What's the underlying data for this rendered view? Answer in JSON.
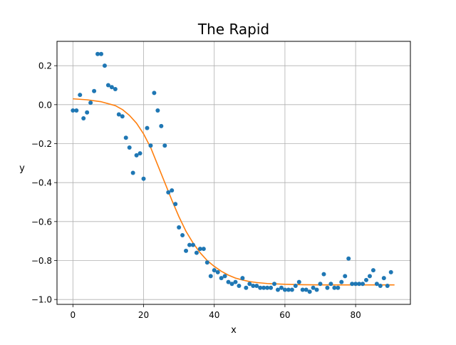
{
  "chart_data": {
    "type": "scatter",
    "title": "The Rapid",
    "xlabel": "x",
    "ylabel": "y",
    "xlim": [
      -4.5,
      95.5
    ],
    "ylim": [
      -1.025,
      0.325
    ],
    "xticks": [
      0,
      20,
      40,
      60,
      80
    ],
    "yticks": [
      0.2,
      0.0,
      -0.2,
      -0.4,
      -0.6,
      -0.8,
      -1.0
    ],
    "xtick_labels": [
      "0",
      "20",
      "40",
      "60",
      "80"
    ],
    "ytick_labels": [
      "0.2",
      "0.0",
      "−0.2",
      "−0.4",
      "−0.6",
      "−0.8",
      "−1.0"
    ],
    "grid": true,
    "series": [
      {
        "kind": "scatter",
        "color": "#1f77b4",
        "x": [
          0,
          1,
          2,
          3,
          4,
          5,
          6,
          7,
          8,
          9,
          10,
          11,
          12,
          13,
          14,
          15,
          16,
          17,
          18,
          19,
          20,
          21,
          22,
          23,
          24,
          25,
          26,
          27,
          28,
          29,
          30,
          31,
          32,
          33,
          34,
          35,
          36,
          37,
          38,
          39,
          40,
          41,
          42,
          43,
          44,
          45,
          46,
          47,
          48,
          49,
          50,
          51,
          52,
          53,
          54,
          55,
          56,
          57,
          58,
          59,
          60,
          61,
          62,
          63,
          64,
          65,
          66,
          67,
          68,
          69,
          70,
          71,
          72,
          73,
          74,
          75,
          76,
          77,
          78,
          79,
          80,
          81,
          82,
          83,
          84,
          85,
          86,
          87,
          88,
          89,
          90
        ],
        "y": [
          -0.03,
          -0.03,
          0.05,
          -0.07,
          -0.04,
          0.01,
          0.07,
          0.26,
          0.26,
          0.2,
          0.1,
          0.09,
          0.08,
          -0.05,
          -0.06,
          -0.17,
          -0.22,
          -0.35,
          -0.26,
          -0.25,
          -0.38,
          -0.12,
          -0.21,
          0.06,
          -0.03,
          -0.11,
          -0.21,
          -0.45,
          -0.44,
          -0.51,
          -0.63,
          -0.67,
          -0.75,
          -0.72,
          -0.72,
          -0.76,
          -0.74,
          -0.74,
          -0.81,
          -0.88,
          -0.85,
          -0.86,
          -0.89,
          -0.88,
          -0.91,
          -0.92,
          -0.91,
          -0.93,
          -0.89,
          -0.94,
          -0.92,
          -0.93,
          -0.93,
          -0.94,
          -0.94,
          -0.94,
          -0.94,
          -0.92,
          -0.95,
          -0.94,
          -0.95,
          -0.95,
          -0.95,
          -0.93,
          -0.91,
          -0.95,
          -0.95,
          -0.96,
          -0.94,
          -0.95,
          -0.92,
          -0.87,
          -0.94,
          -0.92,
          -0.94,
          -0.94,
          -0.91,
          -0.88,
          -0.79,
          -0.92,
          -0.92,
          -0.92,
          -0.92,
          -0.9,
          -0.88,
          -0.85,
          -0.92,
          -0.93,
          -0.89,
          -0.93,
          -0.86
        ]
      },
      {
        "kind": "line",
        "color": "#ff7f0e",
        "x": [
          0,
          4,
          8,
          12,
          14,
          16,
          18,
          20,
          22,
          24,
          26,
          27,
          28,
          30,
          32,
          34,
          36,
          38,
          40,
          42,
          44,
          46,
          48,
          50,
          52,
          55,
          60,
          65,
          70,
          75,
          80,
          85,
          91
        ],
        "y": [
          0.03,
          0.025,
          0.015,
          -0.005,
          -0.025,
          -0.055,
          -0.095,
          -0.15,
          -0.22,
          -0.31,
          -0.4,
          -0.445,
          -0.49,
          -0.575,
          -0.65,
          -0.71,
          -0.76,
          -0.8,
          -0.83,
          -0.855,
          -0.875,
          -0.89,
          -0.9,
          -0.908,
          -0.913,
          -0.918,
          -0.922,
          -0.924,
          -0.925,
          -0.925,
          -0.925,
          -0.925,
          -0.925
        ]
      }
    ]
  }
}
